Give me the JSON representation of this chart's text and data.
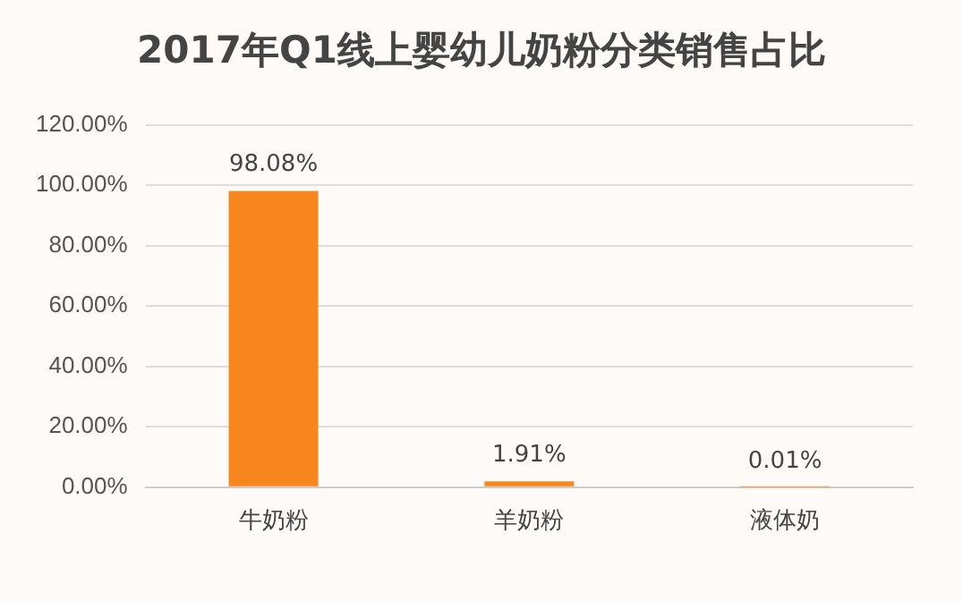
{
  "chart_data": {
    "type": "bar",
    "title": "2017年Q1线上婴幼儿奶粉分类销售占比",
    "categories": [
      "牛奶粉",
      "羊奶粉",
      "液体奶"
    ],
    "values": [
      98.08,
      1.91,
      0.01
    ],
    "value_labels": [
      "98.08%",
      "1.91%",
      "0.01%"
    ],
    "color": "#f7871c",
    "ylim": [
      0,
      120
    ],
    "yticks": [
      {
        "value": 0,
        "label": "0.00%"
      },
      {
        "value": 20,
        "label": "20.00%"
      },
      {
        "value": 40,
        "label": "40.00%"
      },
      {
        "value": 60,
        "label": "60.00%"
      },
      {
        "value": 80,
        "label": "80.00%"
      },
      {
        "value": 100,
        "label": "100.00%"
      },
      {
        "value": 120,
        "label": "120.00%"
      }
    ],
    "grid": "y"
  }
}
